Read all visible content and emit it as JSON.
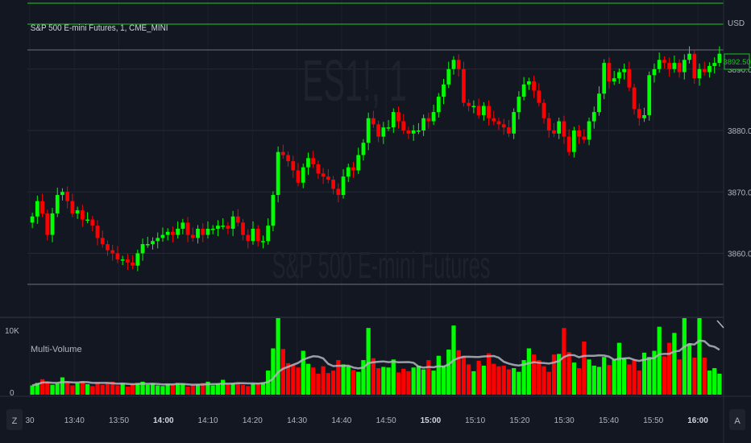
{
  "symbol_title": "S&P 500 E-mini Futures, 1, CME_MINI",
  "watermark": {
    "ticker": "ES1!, 1",
    "name": "S&P 500 E-mini Futures"
  },
  "price_axis": {
    "currency": "USD",
    "ticks": [
      "3860.00",
      "3870.00",
      "3880.00",
      "3890.00"
    ],
    "last_price": "3892.50"
  },
  "volume_panel": {
    "title": "Multi-Volume",
    "ticks": [
      "10K",
      "0"
    ]
  },
  "time_axis": {
    "ticks": [
      {
        "label": "30",
        "bold": false
      },
      {
        "label": "13:40",
        "bold": false
      },
      {
        "label": "13:50",
        "bold": false
      },
      {
        "label": "14:00",
        "bold": true
      },
      {
        "label": "14:10",
        "bold": false
      },
      {
        "label": "14:20",
        "bold": false
      },
      {
        "label": "14:30",
        "bold": false
      },
      {
        "label": "14:40",
        "bold": false
      },
      {
        "label": "14:50",
        "bold": false
      },
      {
        "label": "15:00",
        "bold": true
      },
      {
        "label": "15:10",
        "bold": false
      },
      {
        "label": "15:20",
        "bold": false
      },
      {
        "label": "15:30",
        "bold": false
      },
      {
        "label": "15:40",
        "bold": false
      },
      {
        "label": "15:50",
        "bold": false
      },
      {
        "label": "16:00",
        "bold": true
      }
    ]
  },
  "corner_buttons": {
    "left": "Z",
    "right": "A"
  },
  "colors": {
    "background": "#131722",
    "up": "#00ff00",
    "down": "#ff0000",
    "grid": "#2a2e39",
    "text": "#d1d4dc",
    "accent_green": "#19a81e"
  },
  "chart_data": [
    {
      "type": "candlestick",
      "title": "S&P 500 E-mini Futures, 1, CME_MINI",
      "ylabel": "USD",
      "ylim": [
        3856,
        3896
      ],
      "closes": [
        3866.0,
        3868.5,
        3866.5,
        3863.0,
        3866.5,
        3869.5,
        3870.0,
        3868.5,
        3866.5,
        3867.0,
        3865.5,
        3865.5,
        3864.5,
        3862.5,
        3861.5,
        3860.5,
        3860.0,
        3859.0,
        3859.0,
        3858.5,
        3858.0,
        3860.0,
        3861.5,
        3861.5,
        3862.0,
        3862.5,
        3863.0,
        3863.5,
        3863.0,
        3864.0,
        3865.0,
        3863.0,
        3862.5,
        3864.0,
        3863.0,
        3864.0,
        3864.0,
        3864.5,
        3864.5,
        3864.0,
        3866.0,
        3865.0,
        3863.0,
        3862.0,
        3864.0,
        3862.0,
        3862.0,
        3864.5,
        3869.5,
        3876.5,
        3876.0,
        3875.0,
        3873.5,
        3871.5,
        3874.0,
        3875.5,
        3874.5,
        3873.0,
        3872.5,
        3872.0,
        3870.5,
        3869.5,
        3872.5,
        3874.0,
        3873.5,
        3876.0,
        3878.0,
        3882.0,
        3881.0,
        3879.0,
        3880.5,
        3880.5,
        3883.0,
        3881.5,
        3880.0,
        3879.5,
        3880.0,
        3880.0,
        3882.0,
        3881.5,
        3883.0,
        3885.5,
        3887.5,
        3890.0,
        3891.5,
        3890.0,
        3884.5,
        3884.0,
        3884.0,
        3882.5,
        3884.0,
        3882.0,
        3881.5,
        3881.0,
        3880.5,
        3879.5,
        3883.0,
        3885.5,
        3887.5,
        3888.0,
        3886.5,
        3884.5,
        3882.0,
        3880.0,
        3879.5,
        3881.5,
        3879.0,
        3876.5,
        3880.0,
        3879.0,
        3878.5,
        3881.5,
        3883.0,
        3886.0,
        3891.0,
        3888.0,
        3888.5,
        3889.5,
        3890.0,
        3887.0,
        3883.5,
        3882.0,
        3882.5,
        3889.0,
        3890.0,
        3891.5,
        3891.0,
        3890.0,
        3891.0,
        3889.5,
        3891.5,
        3892.5,
        3888.5,
        3890.0,
        3889.5,
        3890.5,
        3891.0,
        3892.5
      ],
      "volume": {
        "ylim": [
          0,
          12000
        ],
        "values": [
          1500,
          1900,
          2500,
          2100,
          1600,
          1800,
          2800,
          2100,
          1500,
          1900,
          2200,
          1700,
          1400,
          2000,
          1600,
          1900,
          2100,
          1500,
          1800,
          1300,
          1700,
          1900,
          2100,
          1600,
          1800,
          1500,
          1400,
          1700,
          1600,
          1900,
          1800,
          1300,
          1600,
          1700,
          1900,
          2100,
          1500,
          1800,
          2400,
          1700,
          1900,
          2000,
          1600,
          1400,
          1800,
          1900,
          2000,
          3900,
          7500,
          12500,
          7400,
          5100,
          4900,
          4400,
          7100,
          5000,
          4400,
          3400,
          4600,
          3500,
          3900,
          5600,
          4900,
          4600,
          4000,
          3700,
          5600,
          10800,
          5900,
          4300,
          4500,
          4400,
          5700,
          3600,
          4200,
          3800,
          4400,
          4700,
          4100,
          5600,
          3900,
          6300,
          4700,
          7300,
          11200,
          7200,
          6300,
          4900,
          3800,
          5500,
          4700,
          6700,
          5000,
          4600,
          4700,
          4100,
          4300,
          3700,
          5600,
          7500,
          6500,
          5600,
          4600,
          3700,
          6500,
          6600,
          10800,
          6900,
          5200,
          4300,
          8600,
          5700,
          4700,
          4500,
          6100,
          4800,
          5700,
          8400,
          5900,
          4900,
          5700,
          3900,
          6800,
          6100,
          7100,
          11000,
          6200,
          8400,
          10000,
          5700,
          12500,
          8300,
          6000,
          12500,
          6000,
          3900,
          4300,
          3400
        ]
      }
    }
  ]
}
